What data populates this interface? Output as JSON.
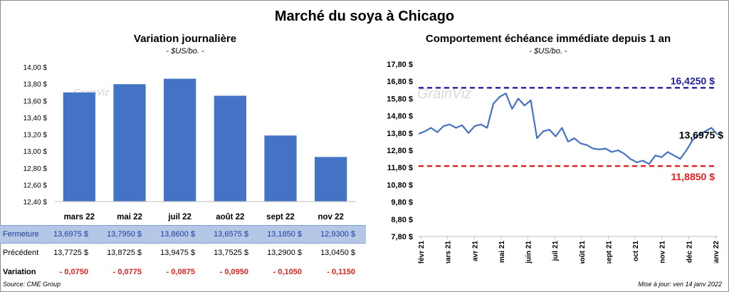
{
  "header": {
    "title": "Marché du soya à Chicago",
    "left_title": "Variation journalière",
    "left_subtitle": "- $US/bo. -",
    "right_title": "Comportement échéance immédiate depuis 1 an",
    "right_subtitle": "- $US/bo. -"
  },
  "watermark": "GrainViz",
  "table": {
    "rows": [
      {
        "label": "Fermeture",
        "values": [
          "13,6975 $",
          "13,7950 $",
          "13,8600 $",
          "13,6575 $",
          "13,1850 $",
          "12,9300 $"
        ]
      },
      {
        "label": "Précédent",
        "values": [
          "13,7725 $",
          "13,8725 $",
          "13,9475 $",
          "13,7525 $",
          "13,2900 $",
          "13,0450 $"
        ]
      },
      {
        "label": "Variation",
        "values": [
          "- 0,0750",
          "- 0,0775",
          "- 0,0875",
          "- 0,0950",
          "- 0,1050",
          "- 0,1150"
        ]
      }
    ]
  },
  "footer": {
    "source": "Source: CME Group",
    "update": "Mise à jour: ven 14 janv 2022"
  },
  "colors": {
    "bar": "#4472c4",
    "line": "#4472c4",
    "high": "#1f1f9f",
    "low": "#e02020",
    "table_header": "#b4c7e7"
  },
  "chart_data": [
    {
      "type": "bar",
      "title": "Variation journalière",
      "subtitle": "- $US/bo. -",
      "categories": [
        "mars 22",
        "mai 22",
        "juil 22",
        "août 22",
        "sept 22",
        "nov 22"
      ],
      "values": [
        13.6975,
        13.795,
        13.86,
        13.6575,
        13.185,
        12.93
      ],
      "ylim": [
        12.4,
        14.0
      ],
      "yticks": [
        "12,40 $",
        "12,60 $",
        "12,80 $",
        "13,00 $",
        "13,20 $",
        "13,40 $",
        "13,60 $",
        "13,80 $",
        "14,00 $"
      ],
      "grid": false
    },
    {
      "type": "line",
      "title": "Comportement échéance immédiate depuis 1 an",
      "subtitle": "- $US/bo. -",
      "ylim": [
        7.8,
        17.8
      ],
      "yticks": [
        "7,80 $",
        "8,80 $",
        "9,80 $",
        "10,80 $",
        "11,80 $",
        "12,80 $",
        "13,80 $",
        "14,80 $",
        "15,80 $",
        "16,80 $",
        "17,80 $"
      ],
      "xticks": [
        "févr 21",
        "mars 21",
        "avr 21",
        "mai 21",
        "juin 21",
        "juil 21",
        "août 21",
        "sept 21",
        "oct 21",
        "nov 21",
        "déc 21",
        "janv 22"
      ],
      "x": [
        "févr 21",
        "",
        "",
        "",
        "mars 21",
        "",
        "",
        "",
        "avr 21",
        "",
        "",
        "",
        "",
        "mai 21",
        "",
        "",
        "",
        "juin 21",
        "",
        "",
        "",
        "juil 21",
        "",
        "",
        "",
        "",
        "août 21",
        "",
        "",
        "",
        "sept 21",
        "",
        "",
        "",
        "oct 21",
        "",
        "",
        "",
        "nov 21",
        "",
        "",
        "",
        "déc 21",
        "",
        "",
        "",
        "janv 22",
        "",
        ""
      ],
      "series": [
        {
          "values": [
            13.75,
            13.9,
            14.1,
            13.85,
            14.2,
            14.3,
            14.1,
            14.25,
            13.8,
            14.2,
            14.3,
            14.1,
            15.5,
            15.9,
            16.1,
            15.2,
            15.8,
            15.4,
            15.7,
            13.5,
            13.9,
            14.0,
            13.6,
            14.1,
            13.3,
            13.5,
            13.2,
            13.1,
            12.9,
            12.85,
            12.9,
            12.7,
            12.8,
            12.6,
            12.3,
            12.1,
            12.2,
            12.0,
            12.5,
            12.4,
            12.7,
            12.5,
            12.3,
            12.8,
            13.4,
            13.7,
            13.9,
            14.1,
            13.7
          ]
        }
      ],
      "annotations": [
        {
          "label": "16,4250 $",
          "value": 16.425,
          "color": "#1f1f9f"
        },
        {
          "label": "13,6975 $",
          "value": 13.6975,
          "color": "#000000"
        },
        {
          "label": "11,8850 $",
          "value": 11.885,
          "color": "#e02020"
        }
      ],
      "grid": false
    }
  ]
}
